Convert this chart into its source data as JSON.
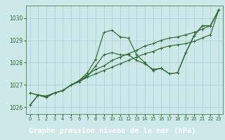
{
  "title": "Graphe pression niveau de la mer (hPa)",
  "background_color": "#cce8e8",
  "plot_bg_color": "#cce8e8",
  "grid_color": "#aacece",
  "line_color": "#2d6a2d",
  "label_bg_color": "#2d6a2d",
  "label_text_color": "#ffffff",
  "xlim": [
    -0.5,
    23.5
  ],
  "ylim": [
    1025.7,
    1030.55
  ],
  "yticks": [
    1026,
    1027,
    1028,
    1029,
    1030
  ],
  "xticks": [
    0,
    1,
    2,
    3,
    4,
    5,
    6,
    7,
    8,
    9,
    10,
    11,
    12,
    13,
    14,
    15,
    16,
    17,
    18,
    19,
    20,
    21,
    22,
    23
  ],
  "series": [
    [
      1026.1,
      1026.55,
      1026.45,
      1026.65,
      1026.75,
      1027.0,
      1027.2,
      1027.55,
      1028.15,
      1029.35,
      1029.45,
      1029.15,
      1029.1,
      1028.35,
      1028.0,
      1027.65,
      1027.75,
      1027.5,
      1027.55,
      1028.45,
      1029.2,
      1029.65,
      1029.65,
      1030.35
    ],
    [
      1026.65,
      1026.55,
      1026.5,
      1026.65,
      1026.75,
      1027.0,
      1027.2,
      1027.45,
      1027.7,
      1027.85,
      1028.1,
      1028.25,
      1028.4,
      1028.55,
      1028.75,
      1028.85,
      1029.0,
      1029.1,
      1029.15,
      1029.25,
      1029.35,
      1029.5,
      1029.65,
      1030.35
    ],
    [
      1026.65,
      1026.55,
      1026.5,
      1026.65,
      1026.75,
      1027.0,
      1027.15,
      1027.35,
      1027.5,
      1027.65,
      1027.8,
      1027.95,
      1028.1,
      1028.25,
      1028.4,
      1028.5,
      1028.65,
      1028.75,
      1028.8,
      1028.85,
      1028.95,
      1029.1,
      1029.25,
      1030.35
    ],
    [
      1026.1,
      1026.55,
      1026.45,
      1026.65,
      1026.75,
      1027.0,
      1027.15,
      1027.4,
      1027.85,
      1028.35,
      1028.45,
      1028.35,
      1028.35,
      1028.1,
      1027.95,
      1027.7,
      1027.75,
      1027.5,
      1027.55,
      1028.45,
      1029.2,
      1029.65,
      1029.65,
      1030.35
    ]
  ],
  "marker": "+",
  "markersize": 3.5,
  "linewidth": 0.85,
  "xlabel_fontsize": 7.5,
  "ytick_fontsize": 5.5,
  "xtick_fontsize": 4.8
}
